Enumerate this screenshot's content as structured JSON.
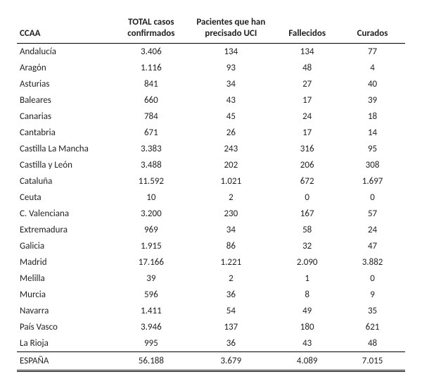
{
  "table": {
    "columns": [
      "CCAA",
      "TOTAL casos confirmados",
      "Pacientes que han precisado UCI",
      "Fallecidos",
      "Curados"
    ],
    "rows": [
      {
        "ccaa": "Andalucía",
        "confirmados": "3.406",
        "uci": "134",
        "fallecidos": "134",
        "curados": "77"
      },
      {
        "ccaa": "Aragón",
        "confirmados": "1.116",
        "uci": "93",
        "fallecidos": "48",
        "curados": "4"
      },
      {
        "ccaa": "Asturias",
        "confirmados": "841",
        "uci": "34",
        "fallecidos": "27",
        "curados": "40"
      },
      {
        "ccaa": "Baleares",
        "confirmados": "660",
        "uci": "43",
        "fallecidos": "17",
        "curados": "39"
      },
      {
        "ccaa": "Canarias",
        "confirmados": "784",
        "uci": "45",
        "fallecidos": "24",
        "curados": "18"
      },
      {
        "ccaa": "Cantabria",
        "confirmados": "671",
        "uci": "26",
        "fallecidos": "17",
        "curados": "14"
      },
      {
        "ccaa": "Castilla La Mancha",
        "confirmados": "3.383",
        "uci": "243",
        "fallecidos": "316",
        "curados": "95"
      },
      {
        "ccaa": "Castilla y León",
        "confirmados": "3.488",
        "uci": "202",
        "fallecidos": "206",
        "curados": "308"
      },
      {
        "ccaa": "Cataluña",
        "confirmados": "11.592",
        "uci": "1.021",
        "fallecidos": "672",
        "curados": "1.697"
      },
      {
        "ccaa": "Ceuta",
        "confirmados": "10",
        "uci": "2",
        "fallecidos": "0",
        "curados": "0"
      },
      {
        "ccaa": "C. Valenciana",
        "confirmados": "3.200",
        "uci": "230",
        "fallecidos": "167",
        "curados": "57"
      },
      {
        "ccaa": "Extremadura",
        "confirmados": "969",
        "uci": "34",
        "fallecidos": "58",
        "curados": "24"
      },
      {
        "ccaa": "Galicia",
        "confirmados": "1.915",
        "uci": "86",
        "fallecidos": "32",
        "curados": "47"
      },
      {
        "ccaa": "Madrid",
        "confirmados": "17.166",
        "uci": "1.221",
        "fallecidos": "2.090",
        "curados": "3.882"
      },
      {
        "ccaa": "Melilla",
        "confirmados": "39",
        "uci": "2",
        "fallecidos": "1",
        "curados": "0"
      },
      {
        "ccaa": "Murcia",
        "confirmados": "596",
        "uci": "36",
        "fallecidos": "8",
        "curados": "9"
      },
      {
        "ccaa": "Navarra",
        "confirmados": "1.411",
        "uci": "54",
        "fallecidos": "49",
        "curados": "35"
      },
      {
        "ccaa": "País Vasco",
        "confirmados": "3.946",
        "uci": "137",
        "fallecidos": "180",
        "curados": "621"
      },
      {
        "ccaa": "La Rioja",
        "confirmados": "995",
        "uci": "36",
        "fallecidos": "43",
        "curados": "48"
      }
    ],
    "total": {
      "ccaa": "ESPAÑA",
      "confirmados": "56.188",
      "uci": "3.679",
      "fallecidos": "4.089",
      "curados": "7.015"
    }
  }
}
